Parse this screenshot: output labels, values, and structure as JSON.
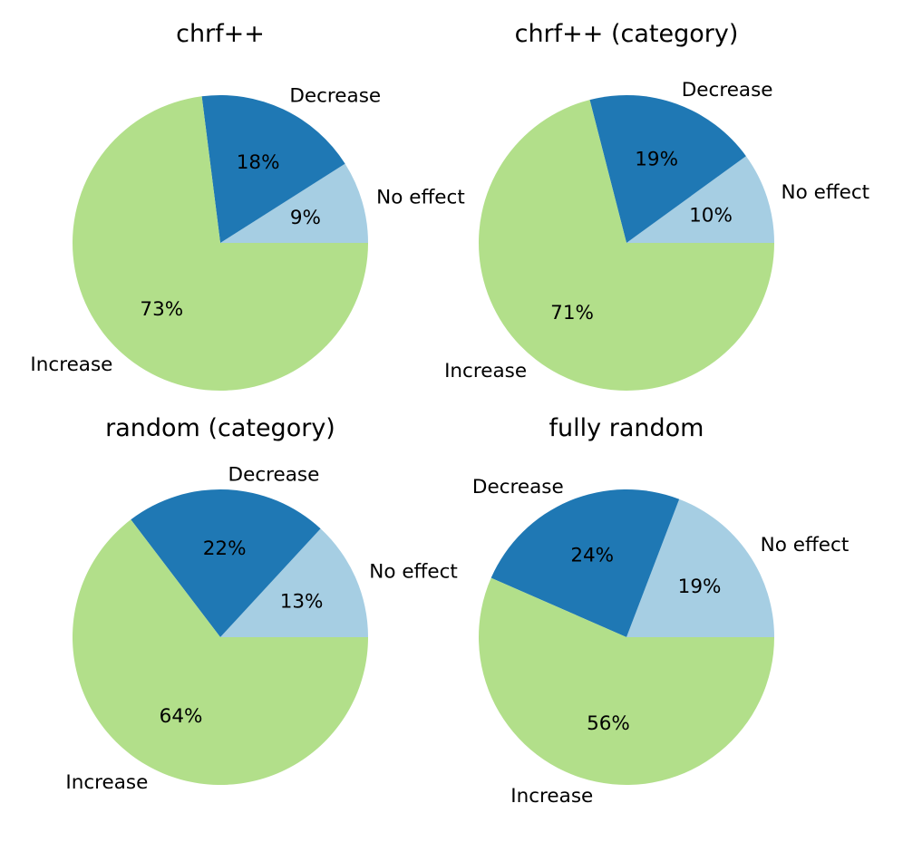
{
  "chart_data": [
    {
      "type": "pie",
      "title": "chrf++",
      "slices": [
        {
          "label": "No effect",
          "value": 9,
          "pct_label": "9%",
          "color": "#a6cee3"
        },
        {
          "label": "Decrease",
          "value": 18,
          "pct_label": "18%",
          "color": "#1f78b4"
        },
        {
          "label": "Increase",
          "value": 73,
          "pct_label": "73%",
          "color": "#b2df8a"
        }
      ]
    },
    {
      "type": "pie",
      "title": "chrf++ (category)",
      "slices": [
        {
          "label": "No effect",
          "value": 10,
          "pct_label": "10%",
          "color": "#a6cee3"
        },
        {
          "label": "Decrease",
          "value": 19,
          "pct_label": "19%",
          "color": "#1f78b4"
        },
        {
          "label": "Increase",
          "value": 71,
          "pct_label": "71%",
          "color": "#b2df8a"
        }
      ]
    },
    {
      "type": "pie",
      "title": "random (category)",
      "slices": [
        {
          "label": "No effect",
          "value": 13,
          "pct_label": "13%",
          "color": "#a6cee3"
        },
        {
          "label": "Decrease",
          "value": 22,
          "pct_label": "22%",
          "color": "#1f78b4"
        },
        {
          "label": "Increase",
          "value": 64,
          "pct_label": "64%",
          "color": "#b2df8a"
        }
      ]
    },
    {
      "type": "pie",
      "title": "fully random",
      "slices": [
        {
          "label": "No effect",
          "value": 19,
          "pct_label": "19%",
          "color": "#a6cee3"
        },
        {
          "label": "Decrease",
          "value": 24,
          "pct_label": "24%",
          "color": "#1f78b4"
        },
        {
          "label": "Increase",
          "value": 56,
          "pct_label": "56%",
          "color": "#b2df8a"
        }
      ]
    }
  ]
}
